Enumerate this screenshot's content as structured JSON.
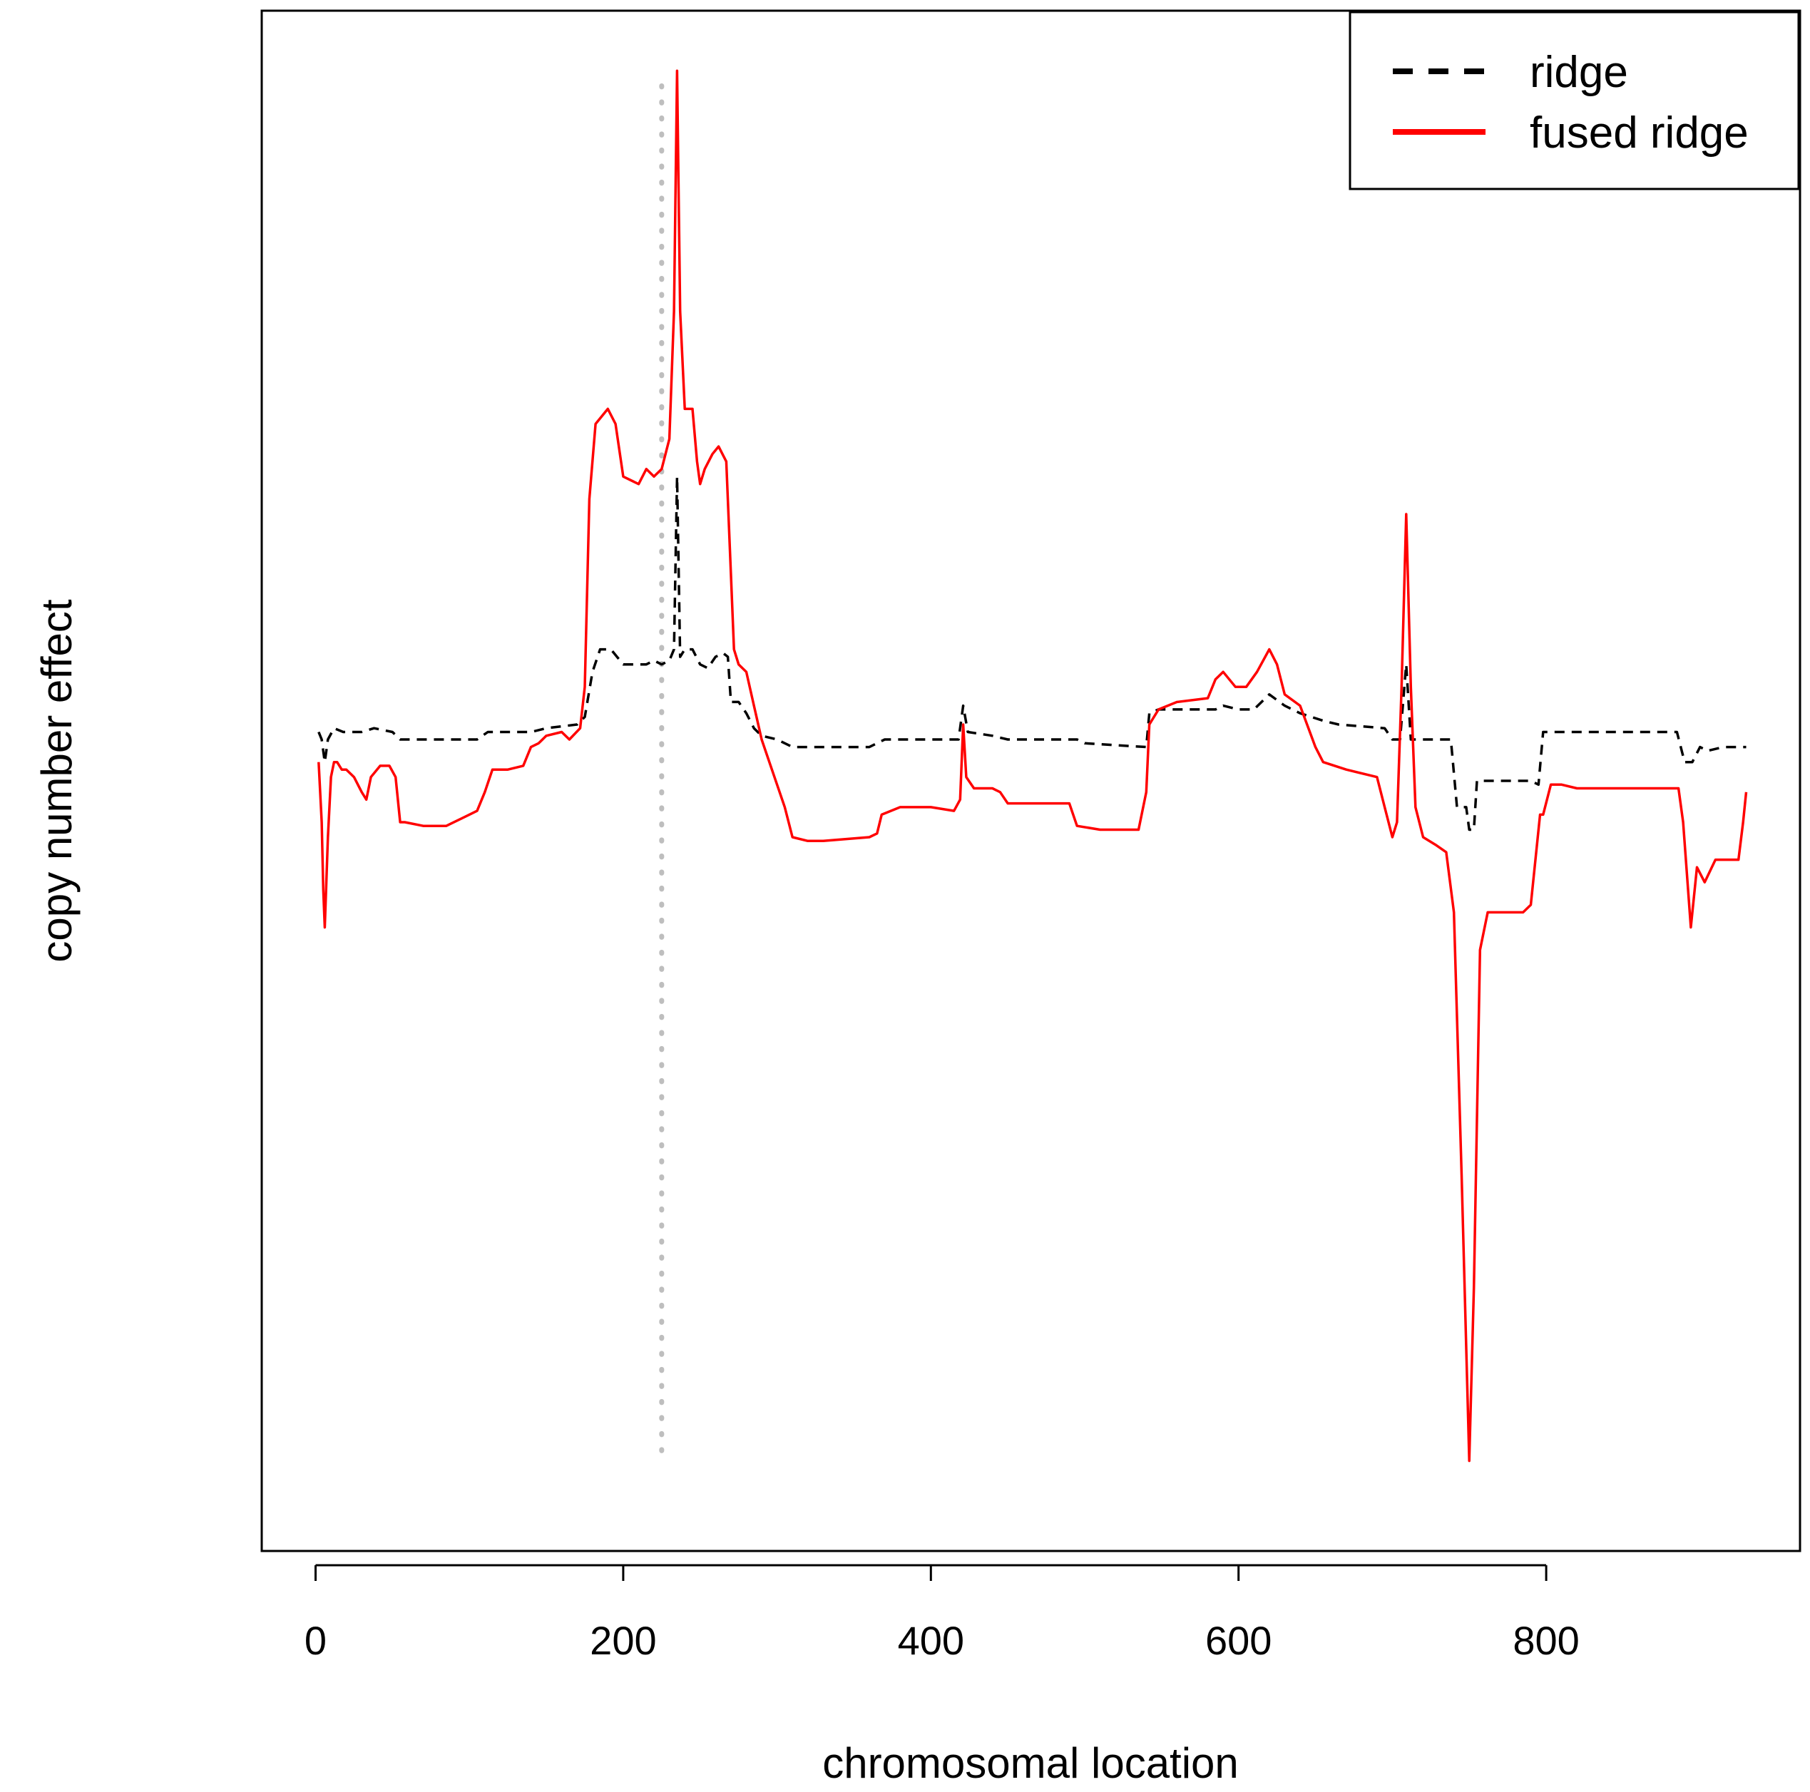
{
  "chart_data": {
    "type": "line",
    "title": "",
    "xlabel": "chromosomal location",
    "ylabel": "copy number effect",
    "xlim": [
      -35,
      965
    ],
    "ylim": [
      -1.05,
      1.0
    ],
    "xticks": [
      0,
      200,
      400,
      600,
      800
    ],
    "yticks_shown": false,
    "grid": false,
    "legend": {
      "position": "top-right",
      "entries": [
        "ridge",
        "fused ridge"
      ]
    },
    "reference_line": {
      "x": 225,
      "style": "dotted",
      "color": "#bebebe"
    },
    "colors": {
      "ridge": "#000000",
      "fused_ridge": "#ff0000",
      "reference": "#bebebe"
    },
    "series": [
      {
        "name": "ridge",
        "style": "dashed",
        "color": "#000000",
        "points": [
          [
            2,
            0.04
          ],
          [
            4,
            0.03
          ],
          [
            6,
            0.0
          ],
          [
            8,
            0.03
          ],
          [
            12,
            0.045
          ],
          [
            18,
            0.04
          ],
          [
            30,
            0.04
          ],
          [
            38,
            0.045
          ],
          [
            50,
            0.04
          ],
          [
            55,
            0.03
          ],
          [
            60,
            0.03
          ],
          [
            105,
            0.03
          ],
          [
            112,
            0.04
          ],
          [
            140,
            0.04
          ],
          [
            150,
            0.045
          ],
          [
            170,
            0.05
          ],
          [
            175,
            0.06
          ],
          [
            180,
            0.12
          ],
          [
            185,
            0.15
          ],
          [
            192,
            0.15
          ],
          [
            200,
            0.13
          ],
          [
            215,
            0.13
          ],
          [
            220,
            0.135
          ],
          [
            225,
            0.13
          ],
          [
            230,
            0.135
          ],
          [
            233,
            0.15
          ],
          [
            235,
            0.38
          ],
          [
            237,
            0.14
          ],
          [
            240,
            0.15
          ],
          [
            245,
            0.15
          ],
          [
            250,
            0.13
          ],
          [
            255,
            0.125
          ],
          [
            260,
            0.14
          ],
          [
            265,
            0.145
          ],
          [
            268,
            0.14
          ],
          [
            270,
            0.08
          ],
          [
            275,
            0.08
          ],
          [
            280,
            0.065
          ],
          [
            285,
            0.045
          ],
          [
            290,
            0.035
          ],
          [
            300,
            0.03
          ],
          [
            310,
            0.02
          ],
          [
            360,
            0.02
          ],
          [
            370,
            0.03
          ],
          [
            418,
            0.03
          ],
          [
            421,
            0.075
          ],
          [
            424,
            0.04
          ],
          [
            440,
            0.035
          ],
          [
            450,
            0.03
          ],
          [
            495,
            0.03
          ],
          [
            500,
            0.025
          ],
          [
            540,
            0.02
          ],
          [
            542,
            0.065
          ],
          [
            548,
            0.07
          ],
          [
            585,
            0.07
          ],
          [
            590,
            0.075
          ],
          [
            600,
            0.07
          ],
          [
            610,
            0.07
          ],
          [
            620,
            0.09
          ],
          [
            630,
            0.075
          ],
          [
            640,
            0.065
          ],
          [
            655,
            0.055
          ],
          [
            665,
            0.05
          ],
          [
            695,
            0.045
          ],
          [
            700,
            0.03
          ],
          [
            705,
            0.03
          ],
          [
            709,
            0.13
          ],
          [
            712,
            0.03
          ],
          [
            730,
            0.03
          ],
          [
            738,
            0.03
          ],
          [
            742,
            -0.06
          ],
          [
            748,
            -0.06
          ],
          [
            750,
            -0.09
          ],
          [
            753,
            -0.09
          ],
          [
            755,
            -0.025
          ],
          [
            790,
            -0.025
          ],
          [
            795,
            -0.03
          ],
          [
            798,
            0.04
          ],
          [
            885,
            0.04
          ],
          [
            890,
            0.0
          ],
          [
            895,
            0.0
          ],
          [
            900,
            0.02
          ],
          [
            905,
            0.015
          ],
          [
            915,
            0.02
          ],
          [
            930,
            0.02
          ]
        ]
      },
      {
        "name": "fused ridge",
        "style": "solid",
        "color": "#ff0000",
        "points": [
          [
            2,
            0.0
          ],
          [
            4,
            -0.08
          ],
          [
            5,
            -0.17
          ],
          [
            6,
            -0.22
          ],
          [
            8,
            -0.1
          ],
          [
            10,
            -0.02
          ],
          [
            12,
            0.0
          ],
          [
            14,
            0.0
          ],
          [
            17,
            -0.01
          ],
          [
            20,
            -0.01
          ],
          [
            25,
            -0.02
          ],
          [
            30,
            -0.04
          ],
          [
            33,
            -0.05
          ],
          [
            36,
            -0.02
          ],
          [
            42,
            -0.005
          ],
          [
            48,
            -0.005
          ],
          [
            52,
            -0.02
          ],
          [
            55,
            -0.08
          ],
          [
            58,
            -0.08
          ],
          [
            70,
            -0.085
          ],
          [
            85,
            -0.085
          ],
          [
            95,
            -0.075
          ],
          [
            105,
            -0.065
          ],
          [
            110,
            -0.04
          ],
          [
            115,
            -0.01
          ],
          [
            125,
            -0.01
          ],
          [
            135,
            -0.005
          ],
          [
            140,
            0.02
          ],
          [
            145,
            0.025
          ],
          [
            150,
            0.035
          ],
          [
            160,
            0.04
          ],
          [
            165,
            0.03
          ],
          [
            172,
            0.045
          ],
          [
            175,
            0.1
          ],
          [
            178,
            0.35
          ],
          [
            182,
            0.45
          ],
          [
            190,
            0.47
          ],
          [
            195,
            0.45
          ],
          [
            200,
            0.38
          ],
          [
            210,
            0.37
          ],
          [
            215,
            0.39
          ],
          [
            220,
            0.38
          ],
          [
            225,
            0.39
          ],
          [
            230,
            0.43
          ],
          [
            233,
            0.6
          ],
          [
            235,
            0.92
          ],
          [
            237,
            0.6
          ],
          [
            240,
            0.47
          ],
          [
            245,
            0.47
          ],
          [
            248,
            0.4
          ],
          [
            250,
            0.37
          ],
          [
            253,
            0.39
          ],
          [
            258,
            0.41
          ],
          [
            262,
            0.42
          ],
          [
            267,
            0.4
          ],
          [
            270,
            0.25
          ],
          [
            272,
            0.15
          ],
          [
            275,
            0.13
          ],
          [
            280,
            0.12
          ],
          [
            285,
            0.075
          ],
          [
            290,
            0.03
          ],
          [
            295,
            0.0
          ],
          [
            300,
            -0.03
          ],
          [
            305,
            -0.06
          ],
          [
            310,
            -0.1
          ],
          [
            320,
            -0.105
          ],
          [
            330,
            -0.105
          ],
          [
            360,
            -0.1
          ],
          [
            365,
            -0.095
          ],
          [
            368,
            -0.07
          ],
          [
            380,
            -0.06
          ],
          [
            400,
            -0.06
          ],
          [
            415,
            -0.065
          ],
          [
            419,
            -0.05
          ],
          [
            421,
            0.05
          ],
          [
            423,
            -0.02
          ],
          [
            428,
            -0.035
          ],
          [
            440,
            -0.035
          ],
          [
            445,
            -0.04
          ],
          [
            450,
            -0.055
          ],
          [
            490,
            -0.055
          ],
          [
            495,
            -0.085
          ],
          [
            510,
            -0.09
          ],
          [
            535,
            -0.09
          ],
          [
            540,
            -0.04
          ],
          [
            542,
            0.05
          ],
          [
            548,
            0.07
          ],
          [
            560,
            0.08
          ],
          [
            580,
            0.085
          ],
          [
            585,
            0.11
          ],
          [
            590,
            0.12
          ],
          [
            598,
            0.1
          ],
          [
            605,
            0.1
          ],
          [
            612,
            0.12
          ],
          [
            620,
            0.15
          ],
          [
            625,
            0.13
          ],
          [
            630,
            0.09
          ],
          [
            640,
            0.075
          ],
          [
            650,
            0.02
          ],
          [
            655,
            0.0
          ],
          [
            670,
            -0.01
          ],
          [
            690,
            -0.02
          ],
          [
            695,
            -0.06
          ],
          [
            700,
            -0.1
          ],
          [
            703,
            -0.08
          ],
          [
            706,
            0.1
          ],
          [
            709,
            0.33
          ],
          [
            712,
            0.1
          ],
          [
            715,
            -0.06
          ],
          [
            720,
            -0.1
          ],
          [
            728,
            -0.11
          ],
          [
            735,
            -0.12
          ],
          [
            740,
            -0.2
          ],
          [
            745,
            -0.55
          ],
          [
            750,
            -0.93
          ],
          [
            753,
            -0.7
          ],
          [
            757,
            -0.25
          ],
          [
            762,
            -0.2
          ],
          [
            785,
            -0.2
          ],
          [
            790,
            -0.19
          ],
          [
            796,
            -0.07
          ],
          [
            798,
            -0.07
          ],
          [
            803,
            -0.03
          ],
          [
            810,
            -0.03
          ],
          [
            820,
            -0.035
          ],
          [
            880,
            -0.035
          ],
          [
            886,
            -0.035
          ],
          [
            889,
            -0.08
          ],
          [
            894,
            -0.22
          ],
          [
            898,
            -0.14
          ],
          [
            903,
            -0.16
          ],
          [
            910,
            -0.13
          ],
          [
            925,
            -0.13
          ],
          [
            928,
            -0.08
          ],
          [
            930,
            -0.04
          ]
        ]
      }
    ]
  }
}
